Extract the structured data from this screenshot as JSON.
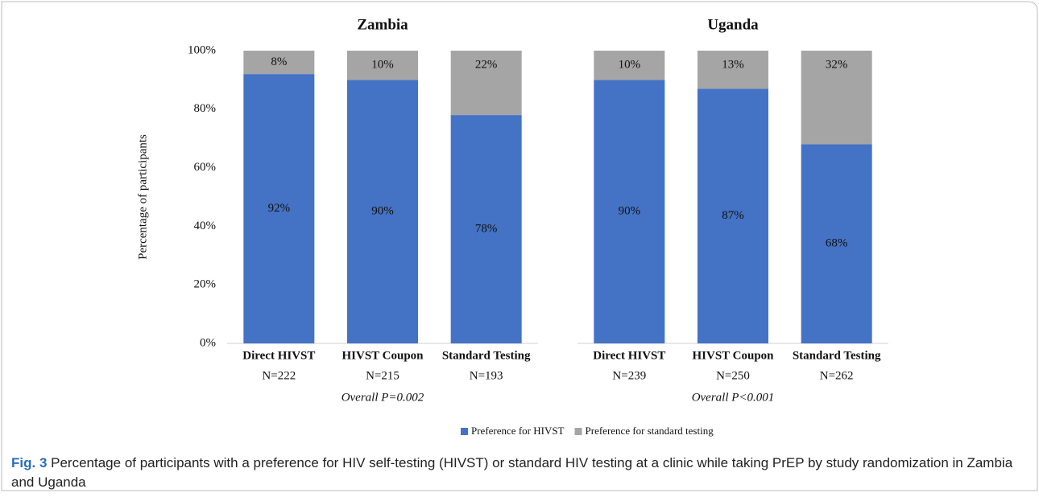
{
  "chart_data": [
    {
      "type": "stacked_bar",
      "title": "Zambia",
      "ylabel": "Percentage of participants",
      "categories": [
        "Direct HIVST",
        "HIVST Coupon",
        "Standard Testing"
      ],
      "category_sublabels": [
        "N=222",
        "N=215",
        "N=193"
      ],
      "annotation": "Overall P=0.002",
      "series": [
        {
          "name": "Preference for HIVST",
          "color": "#4472c4",
          "values": [
            92,
            90,
            78
          ],
          "value_labels": [
            "92%",
            "90%",
            "78%"
          ]
        },
        {
          "name": "Preference for standard testing",
          "color": "#a5a5a5",
          "values": [
            8,
            10,
            22
          ],
          "value_labels": [
            "8%",
            "10%",
            "22%"
          ]
        }
      ],
      "ylim": [
        0,
        100
      ],
      "yticks": [
        {
          "value": 0,
          "label": "0%"
        },
        {
          "value": 20,
          "label": "20%"
        },
        {
          "value": 40,
          "label": "40%"
        },
        {
          "value": 60,
          "label": "60%"
        },
        {
          "value": 80,
          "label": "80%"
        },
        {
          "value": 100,
          "label": "100%"
        }
      ]
    },
    {
      "type": "stacked_bar",
      "title": "Uganda",
      "categories": [
        "Direct HIVST",
        "HIVST Coupon",
        "Standard Testing"
      ],
      "category_sublabels": [
        "N=239",
        "N=250",
        "N=262"
      ],
      "annotation": "Overall P<0.001",
      "series": [
        {
          "name": "Preference for HIVST",
          "color": "#4472c4",
          "values": [
            90,
            87,
            68
          ],
          "value_labels": [
            "90%",
            "87%",
            "68%"
          ]
        },
        {
          "name": "Preference for standard testing",
          "color": "#a5a5a5",
          "values": [
            10,
            13,
            32
          ],
          "value_labels": [
            "10%",
            "13%",
            "32%"
          ]
        }
      ],
      "ylim": [
        0,
        100
      ]
    }
  ],
  "legend_position": "bottom",
  "caption": {
    "label": "Fig. 3",
    "text": "Percentage of participants with a preference for HIV self-testing (HIVST) or standard HIV testing at a clinic while taking PrEP by study randomization in Zambia and Uganda"
  }
}
